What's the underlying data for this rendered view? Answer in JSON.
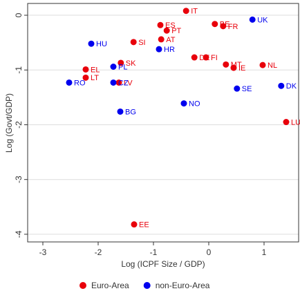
{
  "chart_data": {
    "type": "scatter",
    "x_label": "Log (ICPF Size / GDP)",
    "y_label": "Log (Govt/GDP)",
    "xlim": [
      -3.275,
      1.625
    ],
    "ylim": [
      -4.14,
      0.215
    ],
    "xticks": [
      -3,
      -2,
      -1,
      0,
      1
    ],
    "yticks": [
      -4,
      -3,
      -2,
      -1,
      0
    ],
    "grid": true,
    "legend": "bottom",
    "series": [
      {
        "name": "Euro-Area",
        "color": "#e8000b",
        "labels": [
          "IT",
          "ES",
          "PT",
          "AT",
          "SI",
          "BE",
          "FR",
          "DE",
          "FI",
          "MT",
          "IE",
          "NL",
          "SK",
          "EL",
          "LT",
          "LV",
          "LU",
          "EE"
        ],
        "x": [
          -0.41,
          -0.875,
          -0.76,
          -0.86,
          -1.36,
          0.11,
          0.26,
          -0.26,
          -0.05,
          0.31,
          0.45,
          0.975,
          -1.59,
          -2.225,
          -2.225,
          -1.625,
          1.4,
          -1.35
        ],
        "values": [
          0.08,
          -0.18,
          -0.28,
          -0.44,
          -0.49,
          -0.16,
          -0.2,
          -0.77,
          -0.77,
          -0.9,
          -0.96,
          -0.91,
          -0.87,
          -0.99,
          -1.14,
          -1.23,
          -1.95,
          -3.82
        ]
      },
      {
        "name": "non-Euro-Area",
        "color": "#0000ee",
        "labels": [
          "UK",
          "HU",
          "HR",
          "PL",
          "RO",
          "CZ",
          "BG",
          "NO",
          "SE",
          "DK"
        ],
        "x": [
          0.79,
          -2.125,
          -0.9,
          -1.725,
          -2.525,
          -1.725,
          -1.6,
          -0.45,
          0.51,
          1.31
        ],
        "values": [
          -0.08,
          -0.52,
          -0.62,
          -0.94,
          -1.23,
          -1.23,
          -1.76,
          -1.61,
          -1.34,
          -1.29
        ]
      }
    ]
  }
}
